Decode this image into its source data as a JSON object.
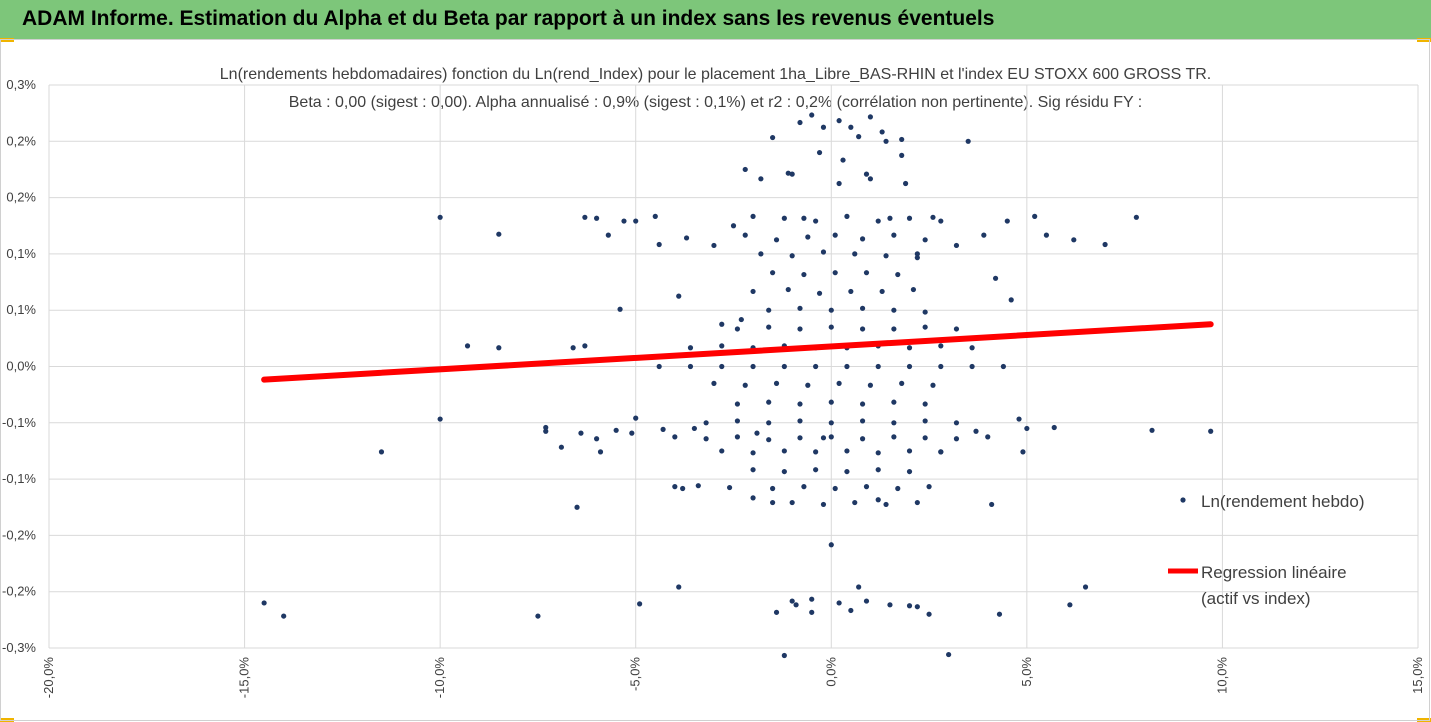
{
  "header": {
    "title": "ADAM Informe. Estimation du Alpha et du Beta par rapport à un index sans les revenus éventuels"
  },
  "colors": {
    "banner": "#7dc67a",
    "points": "#1f3864",
    "regression": "#ff0000",
    "grid": "#d9d9d9",
    "accent": "#f0b400"
  },
  "chart_data": {
    "type": "scatter",
    "title": "Ln(rendements hebdomadaires) fonction du Ln(rend_Index) pour le placement 1ha_Libre_BAS-RHIN et l'index EU STOXX 600 GROSS TR.",
    "subtitle": "Beta : 0,00 (sigest : 0,00). Alpha annualisé : 0,9% (sigest : 0,1%) et r2 : 0,2% (corrélation non pertinente). Sig résidu FY :",
    "xlabel": "",
    "ylabel": "",
    "xlim": [
      -20,
      15
    ],
    "ylim": [
      -0.3,
      0.3
    ],
    "x_ticks": [
      -20,
      -15,
      -10,
      -5,
      0,
      5,
      10,
      15
    ],
    "x_tick_labels": [
      "-20,0%",
      "-15,0%",
      "-10,0%",
      "-5,0%",
      "0,0%",
      "5,0%",
      "10,0%",
      "15,0%"
    ],
    "y_ticks": [
      0.3,
      0.24,
      0.18,
      0.12,
      0.06,
      0.0,
      -0.06,
      -0.12,
      -0.18,
      -0.24,
      -0.3
    ],
    "y_tick_labels": [
      "0,3%",
      "0,2%",
      "0,2%",
      "0,1%",
      "0,1%",
      "0,0%",
      "-0,1%",
      "-0,1%",
      "-0,2%",
      "-0,2%",
      "-0,3%"
    ],
    "grid": true,
    "legend_position": "right",
    "series": [
      {
        "name": "Ln(rendement hebdo)",
        "kind": "scatter",
        "points": [
          [
            -14.5,
            -0.252
          ],
          [
            -14,
            -0.266
          ],
          [
            -11.5,
            -0.091
          ],
          [
            -10,
            0.159
          ],
          [
            -10,
            -0.056
          ],
          [
            -9.3,
            0.022
          ],
          [
            -8.5,
            0.02
          ],
          [
            -8.5,
            0.141
          ],
          [
            -7.5,
            -0.266
          ],
          [
            -7.3,
            -0.065
          ],
          [
            -7.3,
            -0.069
          ],
          [
            -6.9,
            -0.086
          ],
          [
            -6.6,
            0.02
          ],
          [
            -6.5,
            -0.15
          ],
          [
            -6.4,
            -0.071
          ],
          [
            -6.3,
            0.159
          ],
          [
            -6.3,
            0.022
          ],
          [
            -6.0,
            0.158
          ],
          [
            -6.0,
            -0.077
          ],
          [
            -5.9,
            -0.091
          ],
          [
            -5.7,
            0.14
          ],
          [
            -5.5,
            -0.068
          ],
          [
            -5.4,
            0.061
          ],
          [
            -5.3,
            0.155
          ],
          [
            -5.1,
            -0.071
          ],
          [
            -5.0,
            0.155
          ],
          [
            -5.0,
            -0.055
          ],
          [
            -4.9,
            -0.253
          ],
          [
            -4.5,
            0.16
          ],
          [
            -4.4,
            0.13
          ],
          [
            -4.3,
            -0.067
          ],
          [
            -4.0,
            -0.128
          ],
          [
            -3.9,
            0.075
          ],
          [
            -3.9,
            -0.235
          ],
          [
            -3.8,
            -0.13
          ],
          [
            -3.7,
            0.137
          ],
          [
            -3.5,
            -0.066
          ],
          [
            -3.4,
            -0.127
          ],
          [
            -3.0,
            0.129
          ],
          [
            -2.8,
            0.045
          ],
          [
            -2.6,
            -0.129
          ],
          [
            -2.3,
            0.05
          ],
          [
            -2.0,
            -0.14
          ],
          [
            -1.9,
            -0.071
          ],
          [
            -1.5,
            -0.145
          ],
          [
            -1.4,
            -0.262
          ],
          [
            -1.2,
            -0.308
          ],
          [
            -1.1,
            0.206
          ],
          [
            -0.9,
            -0.254
          ],
          [
            -0.7,
            0.158
          ],
          [
            -0.5,
            -0.262
          ],
          [
            -0.3,
            0.228
          ],
          [
            -0.2,
            -0.076
          ],
          [
            0,
            -0.19
          ],
          [
            0.3,
            0.22
          ],
          [
            0.5,
            -0.26
          ],
          [
            0.7,
            -0.235
          ],
          [
            0.9,
            0.205
          ],
          [
            1.2,
            -0.142
          ],
          [
            1.5,
            0.158
          ],
          [
            1.8,
            0.225
          ],
          [
            2.0,
            -0.255
          ],
          [
            2.2,
            0.116
          ],
          [
            2.5,
            -0.264
          ],
          [
            2.6,
            0.159
          ],
          [
            2.8,
            -0.091
          ],
          [
            3.0,
            -0.307
          ],
          [
            3.2,
            0.129
          ],
          [
            3.5,
            0.24
          ],
          [
            3.7,
            -0.069
          ],
          [
            3.9,
            0.14
          ],
          [
            4.1,
            -0.147
          ],
          [
            4.2,
            0.094
          ],
          [
            4.3,
            -0.264
          ],
          [
            4.5,
            0.155
          ],
          [
            4.6,
            0.071
          ],
          [
            4.8,
            -0.056
          ],
          [
            4.9,
            -0.091
          ],
          [
            5.0,
            -0.066
          ],
          [
            5.2,
            0.16
          ],
          [
            5.5,
            0.14
          ],
          [
            5.7,
            -0.065
          ],
          [
            6.1,
            -0.254
          ],
          [
            6.2,
            0.135
          ],
          [
            6.5,
            -0.235
          ],
          [
            7.0,
            0.13
          ],
          [
            7.8,
            0.159
          ],
          [
            8.2,
            -0.068
          ],
          [
            9.7,
            -0.069
          ],
          [
            -0.8,
            0.26
          ],
          [
            -0.5,
            0.268
          ],
          [
            0.2,
            0.262
          ],
          [
            0.5,
            0.255
          ],
          [
            1.0,
            0.266
          ],
          [
            1.3,
            0.25
          ],
          [
            1.8,
            0.242
          ],
          [
            -1.5,
            0.244
          ],
          [
            -0.2,
            0.255
          ],
          [
            0.7,
            0.245
          ],
          [
            1.4,
            0.24
          ],
          [
            -2.2,
            0.21
          ],
          [
            -1.8,
            0.2
          ],
          [
            -1.0,
            0.205
          ],
          [
            0.2,
            0.195
          ],
          [
            1.0,
            0.2
          ],
          [
            1.9,
            0.195
          ],
          [
            -2.5,
            0.15
          ],
          [
            -2.0,
            0.16
          ],
          [
            -1.2,
            0.158
          ],
          [
            -0.4,
            0.155
          ],
          [
            0.4,
            0.16
          ],
          [
            1.2,
            0.155
          ],
          [
            2.0,
            0.158
          ],
          [
            2.8,
            0.155
          ],
          [
            -2.2,
            0.14
          ],
          [
            -1.4,
            0.135
          ],
          [
            -0.6,
            0.138
          ],
          [
            0.1,
            0.14
          ],
          [
            0.8,
            0.136
          ],
          [
            1.6,
            0.14
          ],
          [
            2.4,
            0.135
          ],
          [
            -1.8,
            0.12
          ],
          [
            -1.0,
            0.118
          ],
          [
            -0.2,
            0.122
          ],
          [
            0.6,
            0.12
          ],
          [
            1.4,
            0.118
          ],
          [
            2.2,
            0.12
          ],
          [
            -1.5,
            0.1
          ],
          [
            -0.7,
            0.098
          ],
          [
            0.1,
            0.1
          ],
          [
            0.9,
            0.1
          ],
          [
            1.7,
            0.098
          ],
          [
            -2.0,
            0.08
          ],
          [
            -1.1,
            0.082
          ],
          [
            -0.3,
            0.078
          ],
          [
            0.5,
            0.08
          ],
          [
            1.3,
            0.08
          ],
          [
            2.1,
            0.082
          ],
          [
            -1.6,
            0.06
          ],
          [
            -0.8,
            0.062
          ],
          [
            0.0,
            0.06
          ],
          [
            0.8,
            0.062
          ],
          [
            1.6,
            0.06
          ],
          [
            2.4,
            0.058
          ],
          [
            -2.4,
            0.04
          ],
          [
            -1.6,
            0.042
          ],
          [
            -0.8,
            0.04
          ],
          [
            0.0,
            0.042
          ],
          [
            0.8,
            0.04
          ],
          [
            1.6,
            0.04
          ],
          [
            2.4,
            0.042
          ],
          [
            3.2,
            0.04
          ],
          [
            -3.6,
            0.02
          ],
          [
            -2.8,
            0.022
          ],
          [
            -2.0,
            0.02
          ],
          [
            -1.2,
            0.022
          ],
          [
            -0.4,
            0.02
          ],
          [
            0.4,
            0.02
          ],
          [
            1.2,
            0.022
          ],
          [
            2.0,
            0.02
          ],
          [
            2.8,
            0.022
          ],
          [
            3.6,
            0.02
          ],
          [
            -4.4,
            0.0
          ],
          [
            -3.6,
            0.0
          ],
          [
            -2.8,
            0.0
          ],
          [
            -2.0,
            0.0
          ],
          [
            -1.2,
            0.0
          ],
          [
            -0.4,
            0.0
          ],
          [
            0.4,
            0.0
          ],
          [
            1.2,
            0.0
          ],
          [
            2.0,
            0.0
          ],
          [
            2.8,
            0.0
          ],
          [
            3.6,
            0.0
          ],
          [
            4.4,
            0.0
          ],
          [
            -3.0,
            -0.018
          ],
          [
            -2.2,
            -0.02
          ],
          [
            -1.4,
            -0.018
          ],
          [
            -0.6,
            -0.02
          ],
          [
            0.2,
            -0.018
          ],
          [
            1.0,
            -0.02
          ],
          [
            1.8,
            -0.018
          ],
          [
            2.6,
            -0.02
          ],
          [
            -2.4,
            -0.04
          ],
          [
            -1.6,
            -0.038
          ],
          [
            -0.8,
            -0.04
          ],
          [
            0.0,
            -0.038
          ],
          [
            0.8,
            -0.04
          ],
          [
            1.6,
            -0.038
          ],
          [
            2.4,
            -0.04
          ],
          [
            -3.2,
            -0.06
          ],
          [
            -2.4,
            -0.058
          ],
          [
            -1.6,
            -0.06
          ],
          [
            -0.8,
            -0.058
          ],
          [
            0.0,
            -0.06
          ],
          [
            0.8,
            -0.058
          ],
          [
            1.6,
            -0.06
          ],
          [
            2.4,
            -0.058
          ],
          [
            3.2,
            -0.06
          ],
          [
            -4.0,
            -0.075
          ],
          [
            -3.2,
            -0.077
          ],
          [
            -2.4,
            -0.075
          ],
          [
            -1.6,
            -0.078
          ],
          [
            -0.8,
            -0.076
          ],
          [
            0.0,
            -0.075
          ],
          [
            0.8,
            -0.077
          ],
          [
            1.6,
            -0.075
          ],
          [
            2.4,
            -0.076
          ],
          [
            3.2,
            -0.077
          ],
          [
            4.0,
            -0.075
          ],
          [
            -2.8,
            -0.09
          ],
          [
            -2.0,
            -0.092
          ],
          [
            -1.2,
            -0.09
          ],
          [
            -0.4,
            -0.091
          ],
          [
            0.4,
            -0.09
          ],
          [
            1.2,
            -0.092
          ],
          [
            2.0,
            -0.09
          ],
          [
            2.8,
            -0.091
          ],
          [
            -2.0,
            -0.11
          ],
          [
            -1.2,
            -0.112
          ],
          [
            -0.4,
            -0.11
          ],
          [
            0.4,
            -0.112
          ],
          [
            1.2,
            -0.11
          ],
          [
            2.0,
            -0.112
          ],
          [
            -1.5,
            -0.13
          ],
          [
            -0.7,
            -0.128
          ],
          [
            0.1,
            -0.13
          ],
          [
            0.9,
            -0.128
          ],
          [
            1.7,
            -0.13
          ],
          [
            2.5,
            -0.128
          ],
          [
            -1.0,
            -0.145
          ],
          [
            -0.2,
            -0.147
          ],
          [
            0.6,
            -0.145
          ],
          [
            1.4,
            -0.147
          ],
          [
            2.2,
            -0.145
          ],
          [
            -1.0,
            -0.25
          ],
          [
            -0.5,
            -0.248
          ],
          [
            0.2,
            -0.252
          ],
          [
            0.9,
            -0.25
          ],
          [
            1.5,
            -0.254
          ],
          [
            2.2,
            -0.256
          ]
        ]
      },
      {
        "name": "Regression linéaire\n(actif vs index)",
        "kind": "line",
        "points": [
          [
            -14.5,
            -0.014
          ],
          [
            9.7,
            0.045
          ]
        ]
      }
    ],
    "legend": [
      {
        "label": "Ln(rendement hebdo)",
        "marker": "point"
      },
      {
        "label_line1": "Regression linéaire",
        "label_line2": "(actif vs index)",
        "marker": "line"
      }
    ]
  }
}
